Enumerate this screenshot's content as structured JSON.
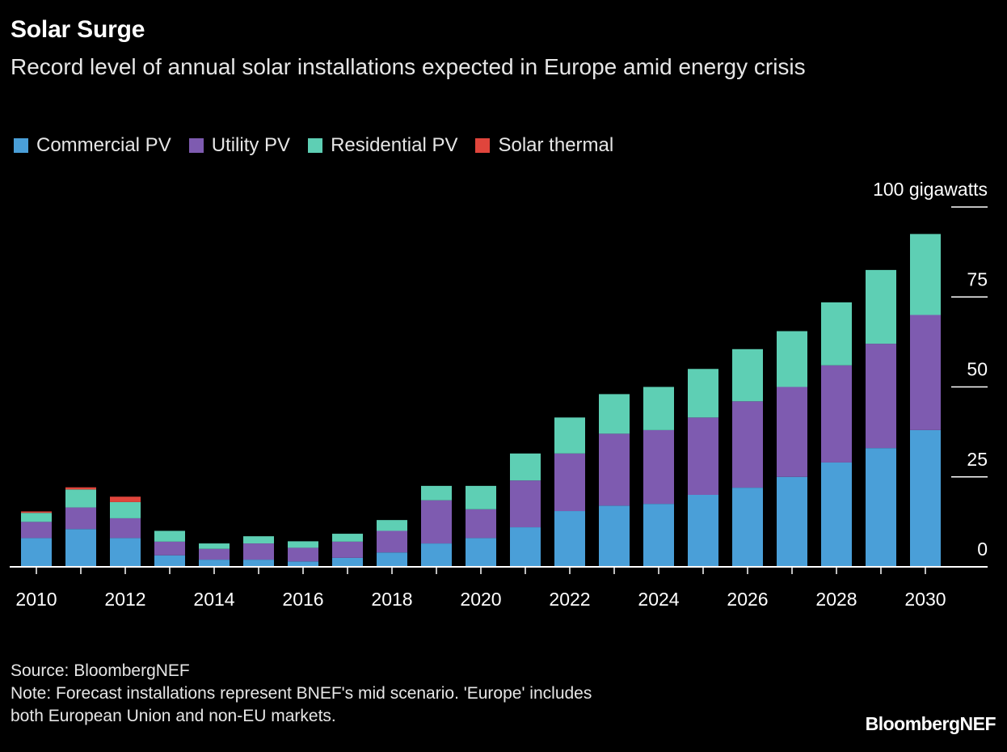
{
  "title": "Solar Surge",
  "subtitle": "Record level of annual solar installations expected in Europe amid energy crisis",
  "source": "Source: BloombergNEF",
  "note_line1": "Note: Forecast installations represent BNEF's mid scenario. 'Europe' includes",
  "note_line2": "both European Union and non-EU markets.",
  "brand": "BloombergNEF",
  "legend": [
    {
      "label": "Commercial PV",
      "color": "#4a9fd8"
    },
    {
      "label": "Utility PV",
      "color": "#7e5bb0"
    },
    {
      "label": "Residential PV",
      "color": "#5ecfb4"
    },
    {
      "label": "Solar thermal",
      "color": "#e0453c"
    }
  ],
  "chart_data": {
    "type": "bar",
    "stacked": true,
    "x": [
      2010,
      2011,
      2012,
      2013,
      2014,
      2015,
      2016,
      2017,
      2018,
      2019,
      2020,
      2021,
      2022,
      2023,
      2024,
      2025,
      2026,
      2027,
      2028,
      2029,
      2030
    ],
    "series": [
      {
        "name": "Commercial PV",
        "color": "#4a9fd8",
        "values": [
          8,
          10.5,
          8,
          3.2,
          2,
          2,
          1.5,
          2.5,
          4,
          6.5,
          8,
          11,
          15.5,
          17,
          17.5,
          20,
          22,
          25,
          29,
          33,
          38
        ]
      },
      {
        "name": "Utility PV",
        "color": "#7e5bb0",
        "values": [
          4.5,
          6,
          5.5,
          3.8,
          3,
          4.5,
          3.8,
          4.5,
          6,
          12,
          8,
          13,
          16,
          20,
          20.5,
          21.5,
          24,
          25,
          27,
          29,
          32
        ]
      },
      {
        "name": "Residential PV",
        "color": "#5ecfb4",
        "values": [
          2.5,
          5,
          4.5,
          3,
          1.5,
          2,
          1.8,
          2.2,
          3,
          4,
          6.5,
          7.5,
          10,
          11,
          12,
          13.5,
          14.5,
          15.5,
          17.5,
          20.5,
          22.5
        ]
      },
      {
        "name": "Solar thermal",
        "color": "#e0453c",
        "values": [
          0.4,
          0.6,
          1.5,
          0,
          0,
          0,
          0,
          0,
          0,
          0,
          0,
          0,
          0,
          0,
          0,
          0,
          0,
          0,
          0,
          0,
          0
        ]
      }
    ],
    "x_tick_labels": [
      "2010",
      "2012",
      "2014",
      "2016",
      "2018",
      "2020",
      "2022",
      "2024",
      "2026",
      "2028",
      "2030"
    ],
    "y_ticks": [
      {
        "value": 0,
        "label": "0"
      },
      {
        "value": 25,
        "label": "25"
      },
      {
        "value": 50,
        "label": "50"
      },
      {
        "value": 75,
        "label": "75"
      },
      {
        "value": 100,
        "label": "100 gigawatts"
      }
    ],
    "ylim": [
      0,
      100
    ],
    "y_axis_position": "right",
    "legend_position": "top-left",
    "grid": false
  }
}
